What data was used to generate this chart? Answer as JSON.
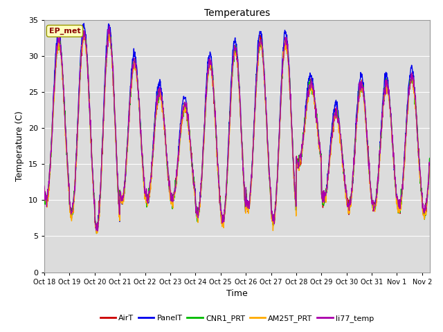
{
  "title": "Temperatures",
  "xlabel": "Time",
  "ylabel": "Temperature (C)",
  "ylim": [
    0,
    35
  ],
  "yticks": [
    0,
    5,
    10,
    15,
    20,
    25,
    30,
    35
  ],
  "xtick_labels": [
    "Oct 18",
    "Oct 19",
    "Oct 20",
    "Oct 21",
    "Oct 22",
    "Oct 23",
    "Oct 24",
    "Oct 25",
    "Oct 26",
    "Oct 27",
    "Oct 28",
    "Oct 29",
    "Oct 30",
    "Oct 31",
    "Nov 1",
    "Nov 2"
  ],
  "annotation": "EP_met",
  "plot_bg": "#dcdcdc",
  "series_colors": {
    "AirT": "#cc0000",
    "PanelT": "#0000ee",
    "CNR1_PRT": "#00bb00",
    "AM25T_PRT": "#ffaa00",
    "li77_temp": "#aa00aa"
  },
  "line_width": 1.0
}
